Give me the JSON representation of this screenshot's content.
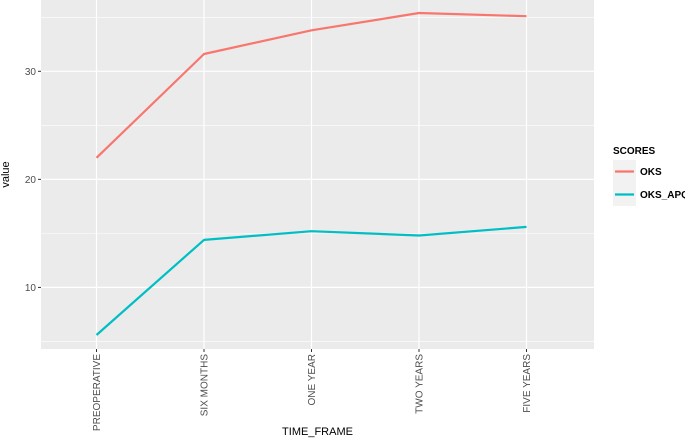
{
  "chart_data": {
    "type": "line",
    "xlabel": "TIME_FRAME",
    "ylabel": "value",
    "categories": [
      "PREOPERATIVE",
      "SIX MONTHS",
      "ONE YEAR",
      "TWO YEARS",
      "FIVE YEARS"
    ],
    "ylim": [
      4.3,
      36.6
    ],
    "yticks": [
      10,
      20,
      30
    ],
    "grid": true,
    "legend": {
      "title": "SCORES",
      "position": "right"
    },
    "series": [
      {
        "name": "OKS",
        "color": "#F8766D",
        "values": [
          22.0,
          31.6,
          33.8,
          35.4,
          35.1
        ]
      },
      {
        "name": "OKS_APQ",
        "color": "#00BFC4",
        "values": [
          5.6,
          14.4,
          15.2,
          14.8,
          15.6
        ]
      }
    ],
    "panel_background": "#EBEBEB",
    "grid_color": "#FFFFFF"
  }
}
